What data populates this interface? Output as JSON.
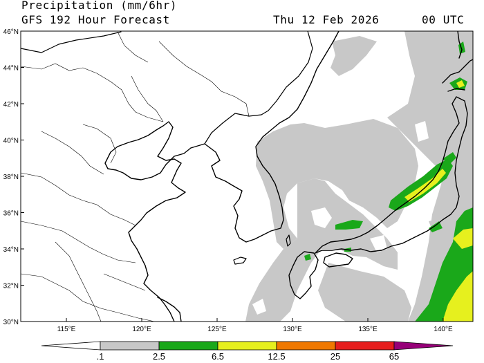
{
  "header": {
    "title": "Precipitation (mm/6hr)",
    "subtitle": "GFS 192 Hour Forecast",
    "valid_date": "Thu 12 Feb 2026",
    "valid_time": "00 UTC"
  },
  "map": {
    "lon_range": [
      112,
      142
    ],
    "lat_range": [
      30,
      46
    ],
    "lat_ticks": [
      "30°N",
      "32°N",
      "34°N",
      "36°N",
      "38°N",
      "40°N",
      "42°N",
      "44°N",
      "46°N"
    ],
    "lon_ticks": [
      "115°E",
      "120°E",
      "125°E",
      "130°E",
      "135°E",
      "140°E"
    ]
  },
  "colorbar": {
    "labels": [
      ".1",
      "2.5",
      "6.5",
      "12.5",
      "25",
      "65"
    ],
    "colors": [
      "#c8c8c8",
      "#1aa81a",
      "#e6f01e",
      "#f07800",
      "#e61e1e",
      "#960078"
    ]
  }
}
